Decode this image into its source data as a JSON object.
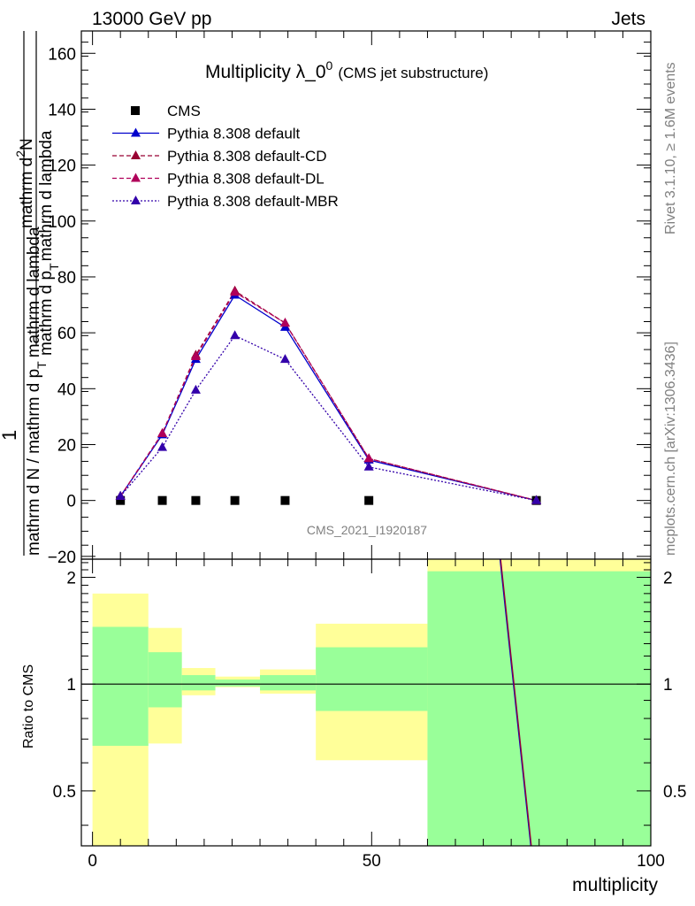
{
  "header": {
    "left": "13000 GeV pp",
    "right": "Jets"
  },
  "side": {
    "rivet": "Rivet 3.1.10, ≥ 1.6M events",
    "mcplots": "mcplots.cern.ch [arXiv:1306.3436]"
  },
  "chart_data": [
    {
      "type": "line",
      "title_main": "Multiplicity λ_0",
      "title_sup": "0",
      "title_sub": "(CMS jet substructure)",
      "ylabel": {
        "frac_num": "1",
        "frac_den": "mathrm d N / mathrm d p",
        "frac_den_sub": "T",
        "frac_den_tail": "mathrm d lambda",
        "rhs_num": "mathrm d",
        "rhs_num_sup": "2",
        "rhs_num_tail": "N",
        "rhs_den": "mathrm d p",
        "rhs_den_sub": "T",
        "rhs_den_tail": "mathrm d lambda"
      },
      "watermark": "CMS_2021_I1920187",
      "xlim": [
        -2,
        100
      ],
      "ylim": [
        -21,
        168
      ],
      "yticks": [
        -20,
        0,
        20,
        40,
        60,
        80,
        100,
        120,
        140,
        160
      ],
      "ytick_labels": [
        "−20",
        "0",
        "20",
        "40",
        "60",
        "80",
        "100",
        "120",
        "140",
        "160"
      ],
      "legend_placement": "top-left",
      "series": [
        {
          "name": "CMS",
          "marker": "square",
          "color": "#000000",
          "x": [
            5,
            12.5,
            18.5,
            25.5,
            34.5,
            49.5,
            79.5
          ],
          "y": [
            0,
            0,
            0,
            0,
            0,
            0,
            0
          ]
        },
        {
          "name": "Pythia 8.308 default",
          "marker": "triangle",
          "line": "solid",
          "color": "#0000cc",
          "x": [
            5,
            12.5,
            18.5,
            25.5,
            34.5,
            49.5,
            79.5
          ],
          "y": [
            1.5,
            23.5,
            50.5,
            73.5,
            62,
            14.5,
            0
          ]
        },
        {
          "name": "Pythia 8.308 default-CD",
          "marker": "triangle",
          "line": "dashed",
          "color": "#990033",
          "x": [
            5,
            12.5,
            18.5,
            25.5,
            34.5,
            49.5,
            79.5
          ],
          "y": [
            1.5,
            24,
            52,
            75,
            63.5,
            15,
            0
          ]
        },
        {
          "name": "Pythia 8.308 default-DL",
          "marker": "triangle",
          "line": "dashed",
          "color": "#b0005a",
          "x": [
            5,
            12.5,
            18.5,
            25.5,
            34.5,
            49.5,
            79.5
          ],
          "y": [
            1.5,
            24,
            51.5,
            74.5,
            63.5,
            15,
            0
          ]
        },
        {
          "name": "Pythia 8.308 default-MBR",
          "marker": "triangle",
          "line": "dotted",
          "color": "#3300aa",
          "x": [
            5,
            12.5,
            18.5,
            25.5,
            34.5,
            49.5,
            79.5
          ],
          "y": [
            1.5,
            19,
            39.5,
            59,
            50.5,
            12,
            0
          ]
        }
      ]
    },
    {
      "type": "area",
      "ylabel": "Ratio to CMS",
      "xlabel": "multiplicity",
      "xlim": [
        -2,
        100
      ],
      "ylim": [
        0.35,
        2.25
      ],
      "xticks": [
        0,
        50,
        100
      ],
      "xtick_labels": [
        "0",
        "50",
        "100"
      ],
      "yticks": [
        0.5,
        1,
        2
      ],
      "ytick_labels": [
        "0.5",
        "1",
        "2"
      ],
      "reference_line": 1,
      "bins": [
        {
          "x0": 0,
          "x1": 10,
          "yellow": [
            0.35,
            1.8
          ],
          "green": [
            0.67,
            1.45
          ]
        },
        {
          "x0": 10,
          "x1": 16,
          "yellow": [
            0.68,
            1.44
          ],
          "green": [
            0.86,
            1.23
          ]
        },
        {
          "x0": 16,
          "x1": 22,
          "yellow": [
            0.93,
            1.11
          ],
          "green": [
            0.96,
            1.06
          ]
        },
        {
          "x0": 22,
          "x1": 30,
          "yellow": [
            0.98,
            1.05
          ],
          "green": [
            0.985,
            1.03
          ]
        },
        {
          "x0": 30,
          "x1": 40,
          "yellow": [
            0.94,
            1.1
          ],
          "green": [
            0.96,
            1.06
          ]
        },
        {
          "x0": 40,
          "x1": 60,
          "yellow": [
            0.61,
            1.48
          ],
          "green": [
            0.84,
            1.27
          ]
        },
        {
          "x0": 60,
          "x1": 100,
          "yellow": [
            0.35,
            2.25
          ],
          "green": [
            0.35,
            2.08
          ]
        }
      ],
      "series": [
        {
          "name": "Pythia 8.308 default",
          "color": "#0000cc",
          "x": [
            73,
            78.5
          ],
          "y": [
            2.25,
            0.35
          ]
        },
        {
          "name": "Pythia 8.308 default-CD",
          "color": "#990033",
          "x": [
            73.1,
            78.6
          ],
          "y": [
            2.25,
            0.35
          ]
        }
      ]
    }
  ]
}
